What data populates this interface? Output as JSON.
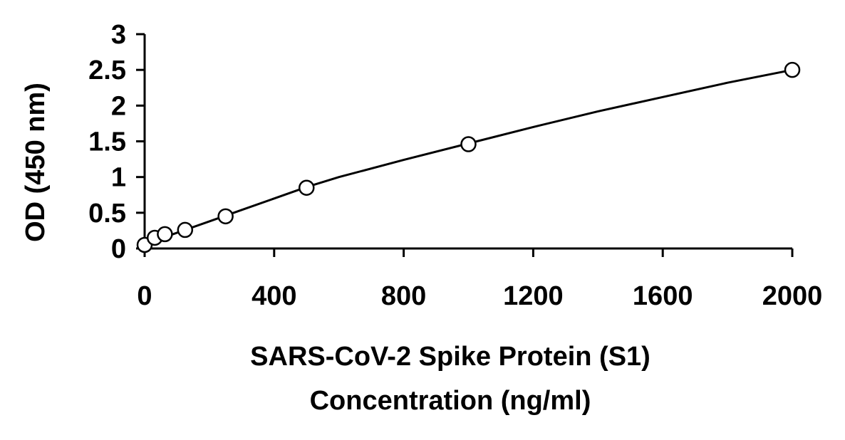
{
  "chart_data": {
    "type": "scatter",
    "title": "",
    "xlabel_lines": [
      "SARS-CoV-2 Spike Protein (S1)",
      "Concentration (ng/ml)"
    ],
    "ylabel": "OD (450 nm)",
    "xlim": [
      0,
      2000
    ],
    "ylim": [
      0,
      3
    ],
    "xticks": [
      0,
      400,
      800,
      1200,
      1600,
      2000
    ],
    "yticks": [
      0,
      0.5,
      1,
      1.5,
      2,
      2.5,
      3
    ],
    "ytick_labels": [
      "0",
      "0.5",
      "1",
      "1.5",
      "2",
      "2.5",
      "3"
    ],
    "grid": false,
    "legend": "none",
    "series": [
      {
        "x": [
          0,
          31.25,
          62.5,
          125,
          250,
          500,
          1000,
          2000
        ],
        "y": [
          0.05,
          0.15,
          0.2,
          0.26,
          0.45,
          0.85,
          1.46,
          2.5
        ]
      }
    ],
    "fit_curve": {
      "x": [
        0,
        100,
        200,
        300,
        400,
        500,
        600,
        800,
        1000,
        1200,
        1400,
        1600,
        1800,
        2000
      ],
      "y": [
        0.06,
        0.22,
        0.38,
        0.54,
        0.7,
        0.86,
        1.0,
        1.24,
        1.47,
        1.7,
        1.92,
        2.12,
        2.32,
        2.5
      ]
    },
    "colors": {
      "axis": "#000000",
      "marker": "#000000",
      "background": "#ffffff"
    }
  }
}
